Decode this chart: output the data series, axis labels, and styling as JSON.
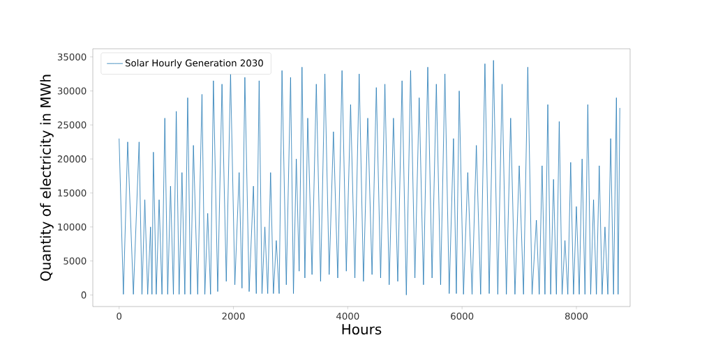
{
  "chart_data": {
    "type": "line",
    "xlabel": "Hours",
    "ylabel": "Quantity of electricity in MWh",
    "xlim": [
      -460,
      8940
    ],
    "ylim": [
      -1700,
      36200
    ],
    "xticks": [
      0,
      2000,
      4000,
      6000,
      8000
    ],
    "yticks": [
      0,
      5000,
      10000,
      15000,
      20000,
      25000,
      30000,
      35000
    ],
    "legend": "top left",
    "grid": false,
    "series": [
      {
        "name": "Solar Hourly Generation 2030",
        "color": "#1f77b4",
        "x": [
          0,
          75,
          150,
          250,
          350,
          400,
          450,
          500,
          550,
          575,
          600,
          650,
          700,
          750,
          800,
          850,
          900,
          950,
          1000,
          1050,
          1100,
          1150,
          1200,
          1250,
          1300,
          1375,
          1450,
          1500,
          1550,
          1600,
          1650,
          1725,
          1800,
          1875,
          1950,
          2025,
          2100,
          2150,
          2200,
          2275,
          2350,
          2400,
          2450,
          2500,
          2550,
          2600,
          2650,
          2700,
          2750,
          2800,
          2850,
          2925,
          3000,
          3050,
          3100,
          3150,
          3200,
          3250,
          3300,
          3375,
          3450,
          3525,
          3600,
          3675,
          3750,
          3825,
          3900,
          3975,
          4050,
          4125,
          4200,
          4275,
          4350,
          4425,
          4500,
          4575,
          4650,
          4725,
          4800,
          4875,
          4950,
          5025,
          5100,
          5175,
          5250,
          5325,
          5400,
          5475,
          5550,
          5625,
          5700,
          5775,
          5850,
          5900,
          5950,
          6025,
          6100,
          6175,
          6250,
          6325,
          6400,
          6475,
          6550,
          6625,
          6700,
          6775,
          6850,
          6925,
          7000,
          7075,
          7150,
          7225,
          7300,
          7350,
          7400,
          7450,
          7500,
          7550,
          7600,
          7650,
          7700,
          7750,
          7800,
          7850,
          7900,
          7950,
          8000,
          8050,
          8100,
          8150,
          8200,
          8250,
          8300,
          8350,
          8400,
          8450,
          8500,
          8550,
          8600,
          8650,
          8700,
          8730,
          8760
        ],
        "values": [
          23000,
          100,
          22500,
          100,
          22500,
          100,
          14000,
          100,
          10000,
          100,
          21000,
          100,
          14000,
          100,
          26000,
          100,
          16000,
          100,
          27000,
          100,
          18000,
          100,
          29000,
          100,
          22000,
          100,
          29500,
          100,
          12000,
          100,
          31500,
          500,
          31000,
          2000,
          32500,
          1500,
          18000,
          1000,
          32000,
          500,
          16000,
          200,
          31500,
          200,
          10000,
          200,
          18000,
          200,
          8000,
          200,
          33000,
          1500,
          32000,
          200,
          20000,
          3500,
          33500,
          2500,
          26000,
          3000,
          31000,
          2000,
          32500,
          3000,
          24000,
          2500,
          33000,
          3500,
          28000,
          2500,
          32500,
          2000,
          26000,
          3000,
          30500,
          2500,
          31000,
          1500,
          26000,
          2000,
          31500,
          0,
          33000,
          2500,
          29000,
          1500,
          33500,
          2500,
          31000,
          1500,
          32500,
          200,
          23000,
          200,
          30000,
          100,
          18000,
          100,
          22000,
          100,
          34000,
          200,
          34500,
          100,
          31000,
          100,
          26000,
          100,
          19000,
          100,
          33500,
          100,
          11000,
          100,
          19000,
          100,
          28000,
          100,
          17000,
          100,
          25500,
          100,
          8000,
          100,
          19500,
          100,
          13000,
          100,
          20000,
          100,
          28000,
          100,
          14000,
          100,
          19000,
          100,
          10000,
          100,
          23000,
          100,
          29000,
          100,
          27500
        ]
      }
    ]
  }
}
